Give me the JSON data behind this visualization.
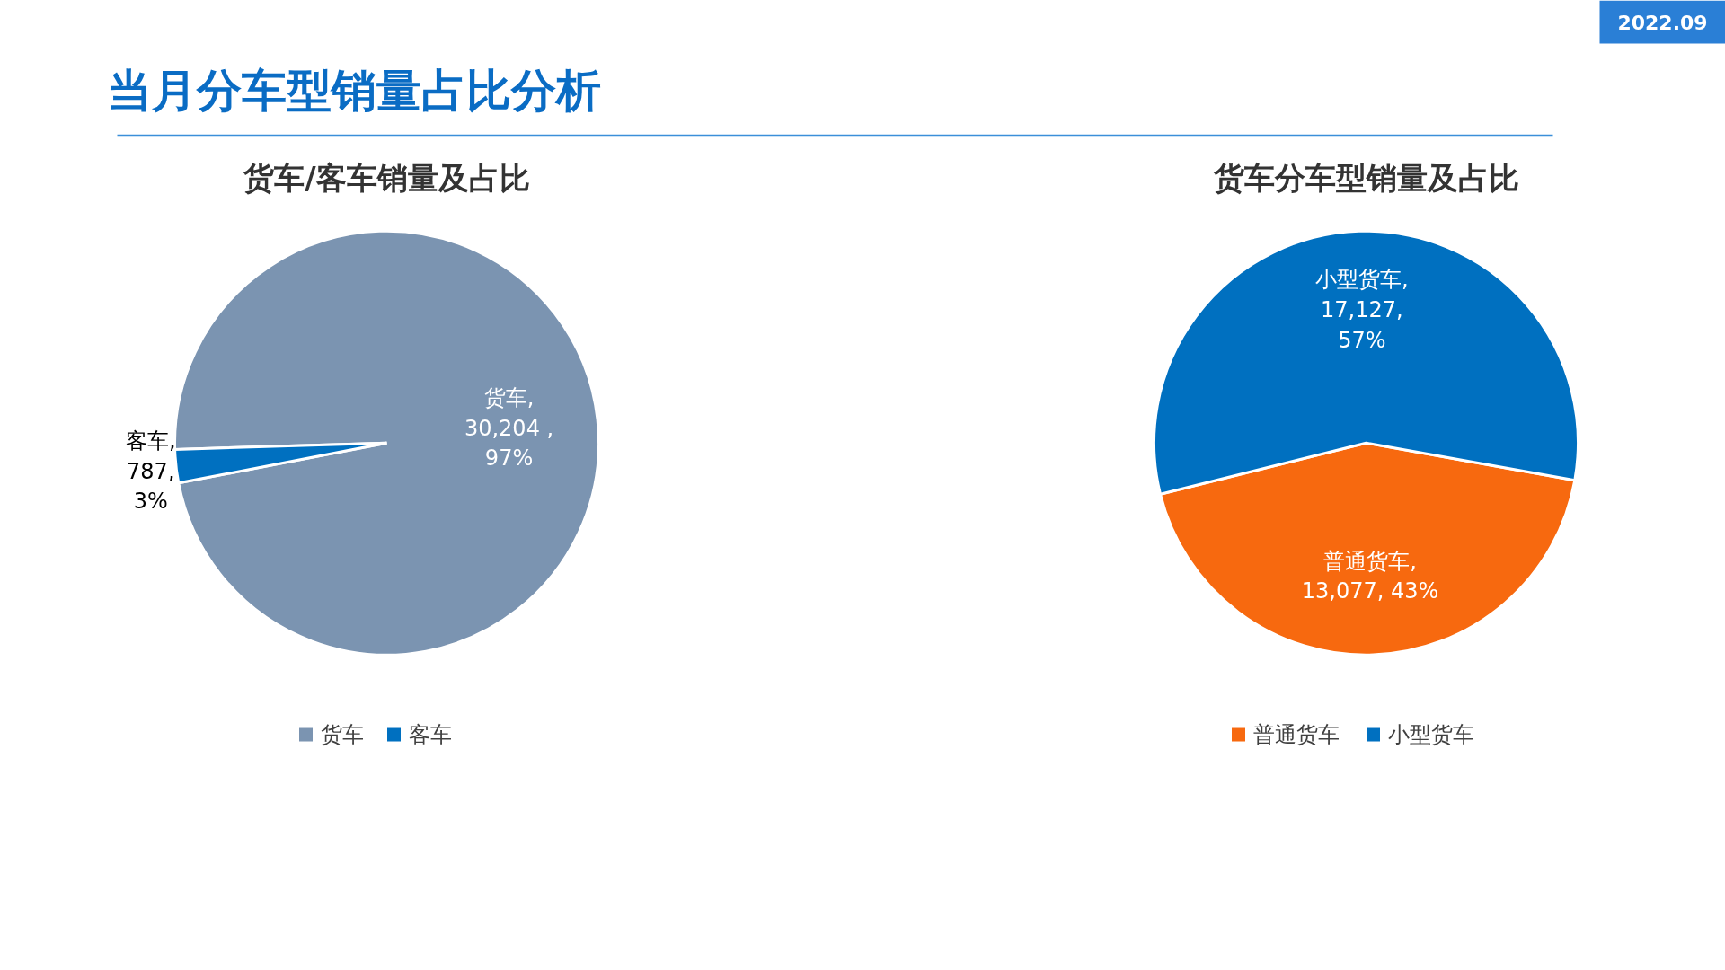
{
  "chart_data": [
    {
      "type": "pie",
      "title": "货车/客车销量及占比",
      "categories": [
        "货车",
        "客车"
      ],
      "values": [
        30204,
        787
      ],
      "colors": [
        "#7b94b1",
        "#0070c0"
      ],
      "value_labels": [
        "货车,\n30,204 ,\n97%",
        "客车,\n787,\n3%"
      ],
      "legend": "bottom",
      "annotations": [
        "当月分车型销量占比分析",
        "2022.09"
      ]
    },
    {
      "type": "pie",
      "title": "货车分车型销量及占比",
      "categories": [
        "普通货车",
        "小型货车"
      ],
      "values": [
        13077,
        17127
      ],
      "colors": [
        "#f7690f",
        "#0070c0"
      ],
      "value_labels": [
        "普通货车,\n13,077, 43%",
        "小型货车,\n17,127,\n57%"
      ],
      "legend": "bottom"
    }
  ]
}
